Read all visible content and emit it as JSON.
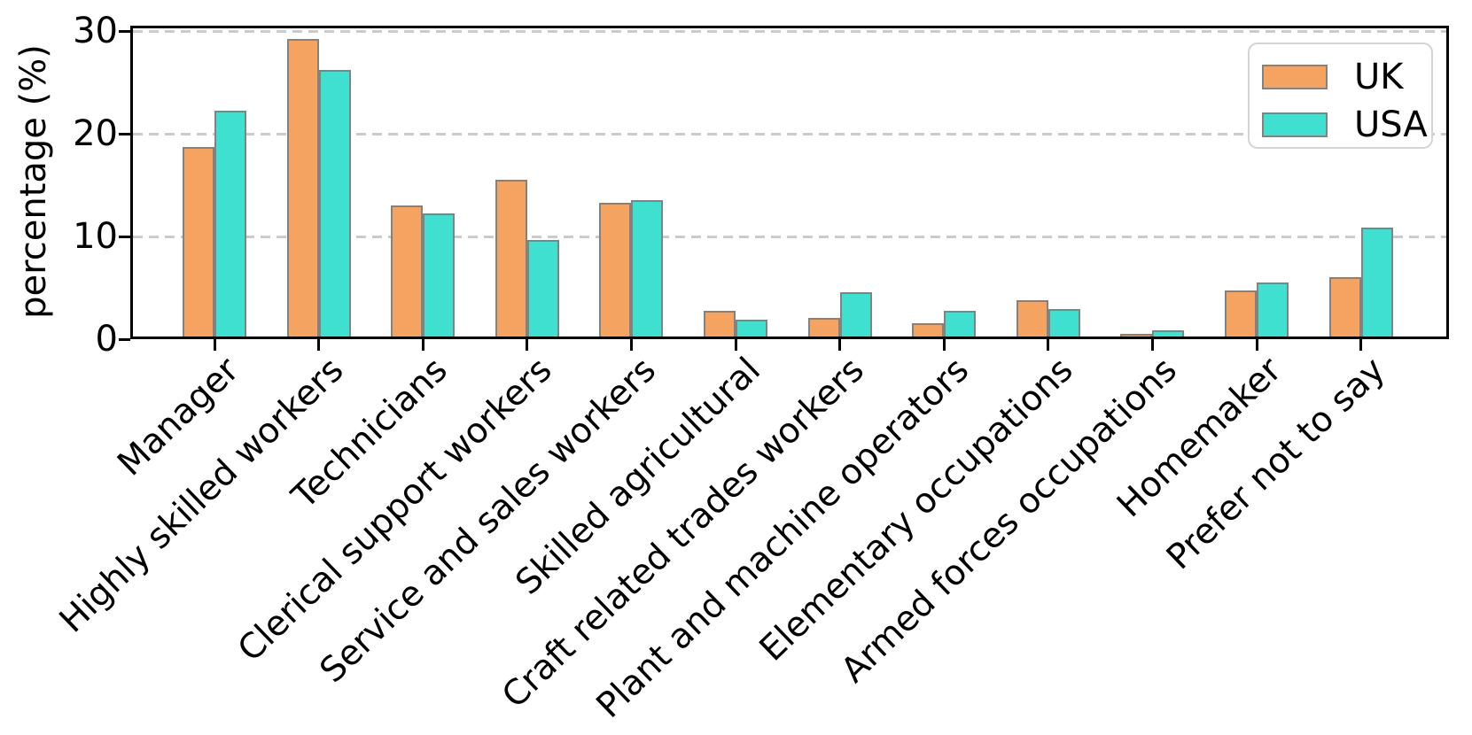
{
  "chart_data": {
    "type": "bar",
    "title": "",
    "xlabel": "",
    "ylabel": "percentage (%)",
    "ylim": [
      0,
      30.5
    ],
    "yticks": [
      0,
      10,
      20,
      30
    ],
    "grid": "horizontal dashed gridlines at 10, 20, 30",
    "legend_position": "upper-right",
    "legend_labels": [
      "UK",
      "USA"
    ],
    "categories": [
      "Manager",
      "Highly skilled workers",
      "Technicians",
      "Clerical support workers",
      "Service and sales workers",
      "Skilled agricultural",
      "Craft related trades workers",
      "Plant and machine operators",
      "Elementary occupations",
      "Armed forces occupations",
      "Homemaker",
      "Prefer not to say"
    ],
    "series": [
      {
        "name": "UK",
        "color": "#F4A460",
        "edge_color": "#828282",
        "values": [
          18.5,
          29,
          12.8,
          15.3,
          13,
          2.5,
          1.8,
          1.3,
          3.5,
          0.3,
          4.5,
          5.8
        ]
      },
      {
        "name": "USA",
        "color": "#40E0D0",
        "edge_color": "#828282",
        "values": [
          22,
          26,
          12,
          9.4,
          13.3,
          1.6,
          4.3,
          2.5,
          2.7,
          0.6,
          5.3,
          10.6
        ]
      }
    ]
  }
}
